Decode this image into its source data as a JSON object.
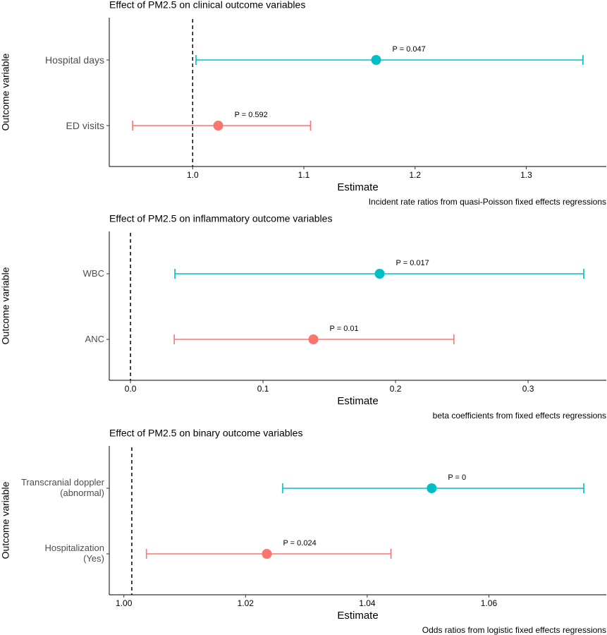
{
  "chart_data": [
    {
      "type": "forest",
      "title": "Effect of PM2.5 on clinical outcome variables",
      "x_label": "Estimate",
      "y_label": "Outcome variable",
      "caption": "Incident rate ratios from quasi-Poisson fixed effects regressions",
      "categories": [
        "Hospital days",
        "ED visits"
      ],
      "estimate": [
        1.165,
        1.023
      ],
      "lower": [
        1.003,
        0.946
      ],
      "upper": [
        1.351,
        1.106
      ],
      "p_labels": [
        "P = 0.047",
        "P = 0.592"
      ],
      "colors": [
        "#00BFC4",
        "#F8766D"
      ],
      "reference_line": 1,
      "xlim": [
        0.925,
        1.372
      ],
      "xticks": [
        {
          "value": 1,
          "label": "1.0"
        },
        1.1,
        1.2,
        1.3
      ]
    },
    {
      "type": "forest",
      "title": "Effect of PM2.5 on inflammatory outcome variables",
      "x_label": "Estimate",
      "y_label": "Outcome variable",
      "caption": "beta coefficients from fixed effects regressions",
      "categories": [
        "WBC",
        "ANC"
      ],
      "estimate": [
        0.188,
        0.138
      ],
      "lower": [
        0.0335,
        0.033
      ],
      "upper": [
        0.342,
        0.244
      ],
      "p_labels": [
        "P = 0.017",
        "P = 0.01"
      ],
      "colors": [
        "#00BFC4",
        "#F8766D"
      ],
      "reference_line": 0,
      "xlim": [
        -0.016,
        0.359
      ],
      "xticks": [
        {
          "value": 0,
          "label": "0.0"
        },
        0.1,
        0.2,
        0.3
      ]
    },
    {
      "type": "forest",
      "title": "Effect of PM2.5 on binary outcome variables",
      "x_label": "Estimate",
      "y_label": "Outcome variable",
      "caption": "Odds ratios from logistic fixed effects regressions",
      "categories": [
        "Transcranial doppler\n(abnormal)",
        "Hospitalization\n(Yes)"
      ],
      "estimate": [
        1.0506,
        1.0235
      ],
      "lower": [
        1.0261,
        1.0037
      ],
      "upper": [
        1.0756,
        1.0439
      ],
      "p_labels": [
        "P = 0",
        "P = 0.024"
      ],
      "colors": [
        "#00BFC4",
        "#F8766D"
      ],
      "reference_line": 1.0013,
      "xlim": [
        0.9976,
        1.0793
      ],
      "xticks": [
        {
          "value": 1,
          "label": "1.00"
        },
        1.02,
        1.04,
        1.06
      ]
    }
  ]
}
